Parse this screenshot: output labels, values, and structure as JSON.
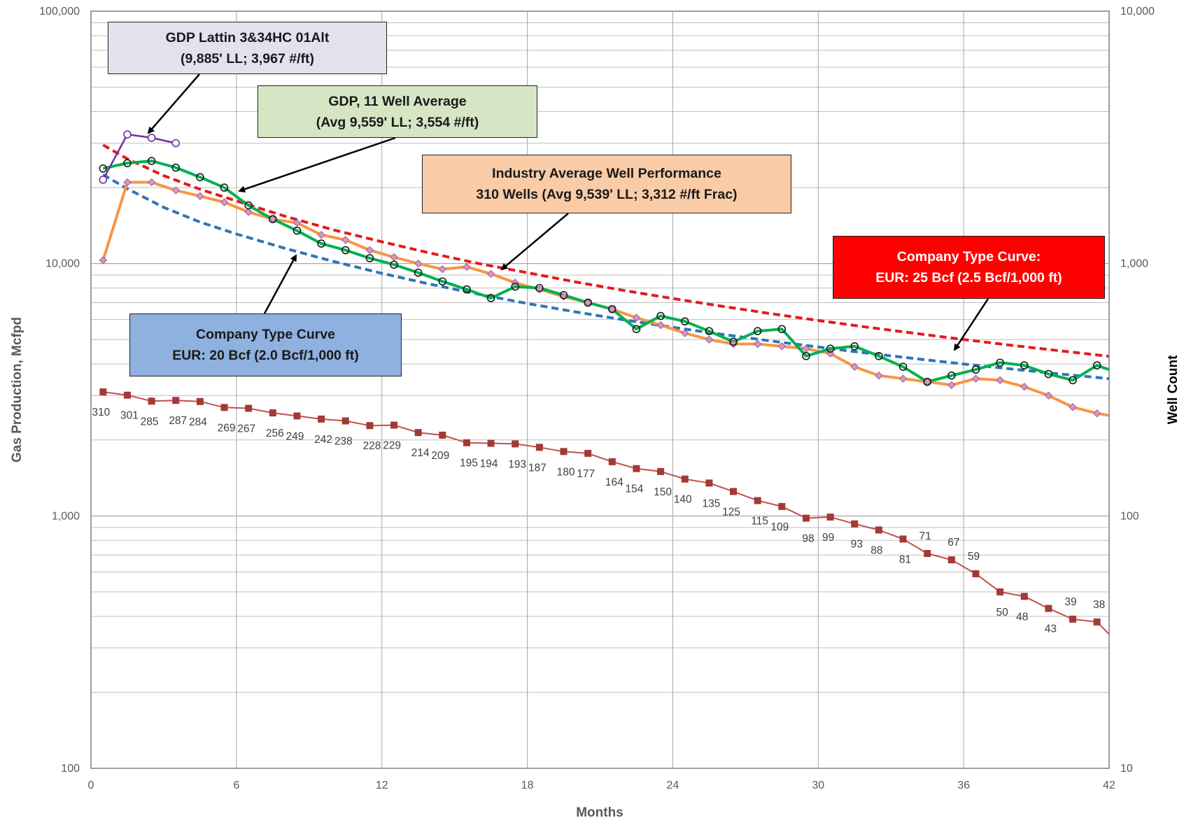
{
  "chart_data": {
    "type": "line",
    "title": "",
    "xlabel": "Months",
    "ylabel": "Gas Production, Mcfpd",
    "y2label": "Well Count",
    "xlim": [
      0,
      42
    ],
    "ylim": [
      100,
      100000
    ],
    "y2lim": [
      10,
      10000
    ],
    "yscale": "log",
    "y2scale": "log",
    "grid": true,
    "x_ticks": [
      "0",
      "6",
      "12",
      "18",
      "24",
      "30",
      "36",
      "42"
    ],
    "y_ticks_left": [
      "100",
      "1,000",
      "10,000",
      "100,000"
    ],
    "y_ticks_right": [
      "10",
      "100",
      "1,000",
      "10,000"
    ],
    "series": [
      {
        "key": "lattin",
        "axis": "left",
        "color": "#7030a0",
        "marker": "circle-open",
        "x": [
          0.5,
          1.5,
          2.5,
          3.5
        ],
        "values": [
          21500,
          32500,
          31500,
          30000
        ]
      },
      {
        "key": "gdp_avg",
        "axis": "left",
        "color": "#00b050",
        "marker": "circle-open-dark",
        "x": [
          0.5,
          1.5,
          2.5,
          3.5,
          4.5,
          5.5,
          6.5,
          7.5,
          8.5,
          9.5,
          10.5,
          11.5,
          12.5,
          13.5,
          14.5,
          15.5,
          16.5,
          17.5,
          18.5,
          19.5,
          20.5,
          21.5,
          22.5,
          23.5,
          24.5,
          25.5,
          26.5,
          27.5,
          28.5,
          29.5,
          30.5,
          31.5,
          32.5,
          33.5,
          34.5,
          35.5,
          36.5,
          37.5,
          38.5,
          39.5,
          40.5,
          41.5,
          42
        ],
        "values": [
          23800,
          25000,
          25500,
          24000,
          22000,
          20000,
          17000,
          15000,
          13500,
          12000,
          11300,
          10500,
          9900,
          9200,
          8500,
          7900,
          7300,
          8100,
          8000,
          7500,
          7000,
          6600,
          5500,
          6200,
          5900,
          5400,
          4900,
          5400,
          5500,
          4300,
          4600,
          4700,
          4300,
          3900,
          3400,
          3600,
          3800,
          4050,
          3950,
          3650,
          3450,
          3950,
          3800
        ]
      },
      {
        "key": "industry",
        "axis": "left",
        "color": "#f79646",
        "marker": "diamond-pink",
        "x": [
          0.5,
          1.5,
          2.5,
          3.5,
          4.5,
          5.5,
          6.5,
          7.5,
          8.5,
          9.5,
          10.5,
          11.5,
          12.5,
          13.5,
          14.5,
          15.5,
          16.5,
          17.5,
          18.5,
          19.5,
          20.5,
          21.5,
          22.5,
          23.5,
          24.5,
          25.5,
          26.5,
          27.5,
          28.5,
          29.5,
          30.5,
          31.5,
          32.5,
          33.5,
          34.5,
          35.5,
          36.5,
          37.5,
          38.5,
          39.5,
          40.5,
          41.5,
          42
        ],
        "values": [
          10300,
          21000,
          21000,
          19500,
          18500,
          17500,
          16000,
          15000,
          14500,
          13000,
          12400,
          11300,
          10600,
          10000,
          9500,
          9700,
          9100,
          8400,
          7900,
          7400,
          7000,
          6600,
          6100,
          5700,
          5300,
          5000,
          4800,
          4800,
          4700,
          4600,
          4400,
          3900,
          3600,
          3500,
          3400,
          3300,
          3500,
          3450,
          3250,
          3000,
          2700,
          2550,
          2500
        ]
      },
      {
        "key": "company25",
        "axis": "left",
        "color": "#e31a1c",
        "style": "dashed",
        "x": [
          0.5,
          1.5,
          3,
          4.5,
          6,
          8,
          10,
          12,
          14,
          16,
          18,
          20,
          22,
          24,
          26,
          28,
          30,
          32,
          34,
          36,
          38,
          40,
          42
        ],
        "values": [
          29500,
          26000,
          22300,
          19700,
          17700,
          15400,
          13600,
          12200,
          11000,
          10000,
          9200,
          8450,
          7820,
          7270,
          6780,
          6340,
          5950,
          5600,
          5290,
          5000,
          4740,
          4510,
          4290
        ]
      },
      {
        "key": "company20",
        "axis": "left",
        "color": "#2e75b6",
        "style": "dashed",
        "x": [
          0.5,
          1.5,
          3,
          4.5,
          6,
          8,
          10,
          12,
          14,
          16,
          18,
          20,
          22,
          24,
          26,
          28,
          30,
          32,
          34,
          36,
          38,
          40,
          42
        ],
        "values": [
          22500,
          19800,
          16700,
          14600,
          13100,
          11500,
          10200,
          9150,
          8280,
          7560,
          6950,
          6430,
          5980,
          5590,
          5250,
          4940,
          4670,
          4420,
          4200,
          4000,
          3820,
          3650,
          3500
        ]
      },
      {
        "key": "well_count",
        "axis": "right",
        "color": "#c0504d",
        "marker": "square",
        "x": [
          0.5,
          1.5,
          2.5,
          3.5,
          4.5,
          5.5,
          6.5,
          7.5,
          8.5,
          9.5,
          10.5,
          11.5,
          12.5,
          13.5,
          14.5,
          15.5,
          16.5,
          17.5,
          18.5,
          19.5,
          20.5,
          21.5,
          22.5,
          23.5,
          24.5,
          25.5,
          26.5,
          27.5,
          28.5,
          29.5,
          30.5,
          31.5,
          32.5,
          33.5,
          34.5,
          35.5,
          36.5,
          37.5,
          38.5,
          39.5,
          40.5,
          41.5,
          42
        ],
        "values": [
          310,
          301,
          285,
          287,
          284,
          269,
          267,
          256,
          249,
          242,
          238,
          228,
          229,
          214,
          209,
          195,
          194,
          193,
          187,
          180,
          177,
          164,
          154,
          150,
          140,
          135,
          125,
          115,
          109,
          98,
          99,
          93,
          88,
          81,
          71,
          67,
          59,
          50,
          48,
          43,
          39,
          38,
          34
        ],
        "labels": [
          "310",
          "301",
          "285",
          "287",
          "284",
          "269",
          "267",
          "256",
          "249",
          "242",
          "238",
          "228",
          "229",
          "214",
          "209",
          "195",
          "194",
          "193",
          "187",
          "180",
          "177",
          "164",
          "154",
          "150",
          "140",
          "135",
          "125",
          "115",
          "109",
          "98",
          "99",
          "93",
          "88",
          "81",
          "71",
          "67",
          "59",
          "50",
          "48",
          "43",
          "39",
          "38"
        ]
      }
    ]
  },
  "annotations": {
    "lattin": {
      "line1": "GDP Lattin 3&34HC 01Alt",
      "line2": "(9,885' LL; 3,967 #/ft)"
    },
    "gdp_avg": {
      "line1": "GDP, 11 Well Average",
      "line2": "(Avg 9,559' LL; 3,554 #/ft)"
    },
    "industry": {
      "line1": "Industry Average Well Performance",
      "line2": "310 Wells (Avg 9,539' LL; 3,312 #/ft Frac)"
    },
    "company25": {
      "line1": "Company Type Curve:",
      "line2": "EUR: 25 Bcf (2.5 Bcf/1,000 ft)"
    },
    "company20": {
      "line1": "Company Type Curve",
      "line2": "EUR: 20 Bcf (2.0 Bcf/1,000 ft)"
    }
  }
}
